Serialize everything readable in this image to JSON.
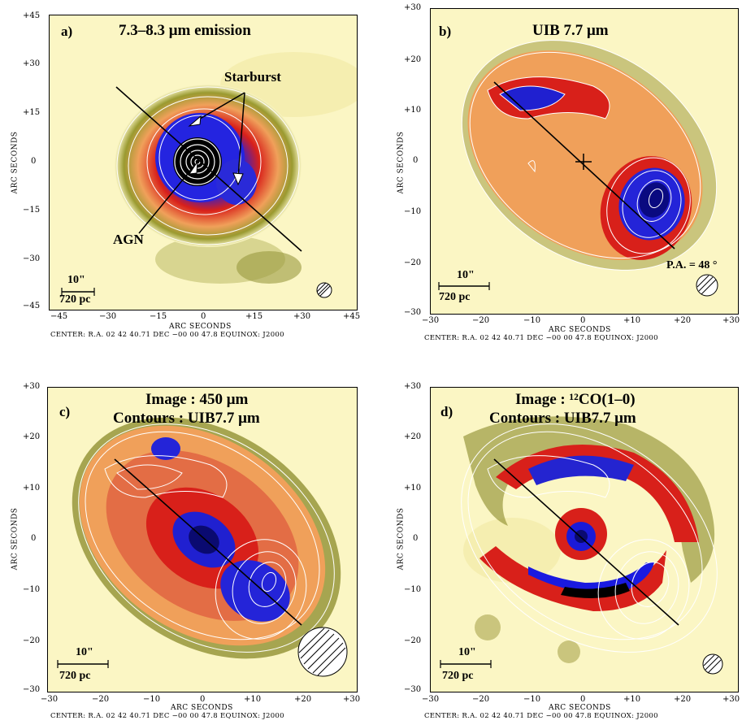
{
  "panels": [
    {
      "letter": "a)",
      "title_line1": "7.3–8.3 μm  emission",
      "title_line2": "",
      "x_ticks": [
        "−45",
        "−30",
        "−15",
        "0",
        "+15",
        "+30",
        "+45"
      ],
      "y_ticks": [
        "+45",
        "+30",
        "+15",
        "0",
        "−15",
        "−30",
        "−45"
      ],
      "axis_label": "ARC SECONDS",
      "center_text": "CENTER: R.A. 02 42 40.71 DEC −00 00 47.8   EQUINOX: J2000",
      "scale_arcsec": "10\"",
      "scale_pc": "720 pc",
      "annotations": {
        "starburst": "Starburst",
        "agn": "AGN"
      }
    },
    {
      "letter": "b)",
      "title_line1": "UIB  7.7 μm",
      "title_line2": "",
      "x_ticks": [
        "−30",
        "−20",
        "−10",
        "0",
        "+10",
        "+20",
        "+30"
      ],
      "y_ticks": [
        "+30",
        "+20",
        "+10",
        "0",
        "−10",
        "−20",
        "−30"
      ],
      "axis_label": "ARC SECONDS",
      "center_text": "CENTER: R.A. 02 42 40.71 DEC −00 00 47.8   EQUINOX: J2000",
      "scale_arcsec": "10\"",
      "scale_pc": "720 pc",
      "annotations": {
        "pa": "P.A. = 48 °"
      }
    },
    {
      "letter": "c)",
      "title_line1": "Image : 450 μm",
      "title_line2": "Contours : UIB7.7 μm",
      "x_ticks": [
        "−30",
        "−20",
        "−10",
        "0",
        "+10",
        "+20",
        "+30"
      ],
      "y_ticks": [
        "+30",
        "+20",
        "+10",
        "0",
        "−10",
        "−20",
        "−30"
      ],
      "axis_label": "ARC SECONDS",
      "center_text": "CENTER: R.A. 02 42 40.71 DEC −00 00 47.8   EQUINOX: J2000",
      "scale_arcsec": "10\"",
      "scale_pc": "720 pc",
      "annotations": {}
    },
    {
      "letter": "d)",
      "title_line1": "Image : ¹²CO(1–0)",
      "title_line2": "Contours : UIB7.7 μm",
      "x_ticks": [
        "−30",
        "−20",
        "−10",
        "0",
        "+10",
        "+20",
        "+30"
      ],
      "y_ticks": [
        "+30",
        "+20",
        "+10",
        "0",
        "−10",
        "−20",
        "−30"
      ],
      "axis_label": "ARC SECONDS",
      "center_text": "CENTER: R.A. 02 42 40.71 DEC −00 00 47.8   EQUINOX: J2000",
      "scale_arcsec": "10\"",
      "scale_pc": "720 pc",
      "annotations": {}
    }
  ],
  "colors": {
    "background": "#fbf6c4",
    "olive": "#8a8a2a",
    "orange": "#f0a05a",
    "red": "#d8201a",
    "blue": "#1a1adc",
    "navy": "#101070",
    "contour": "#ffffff"
  }
}
